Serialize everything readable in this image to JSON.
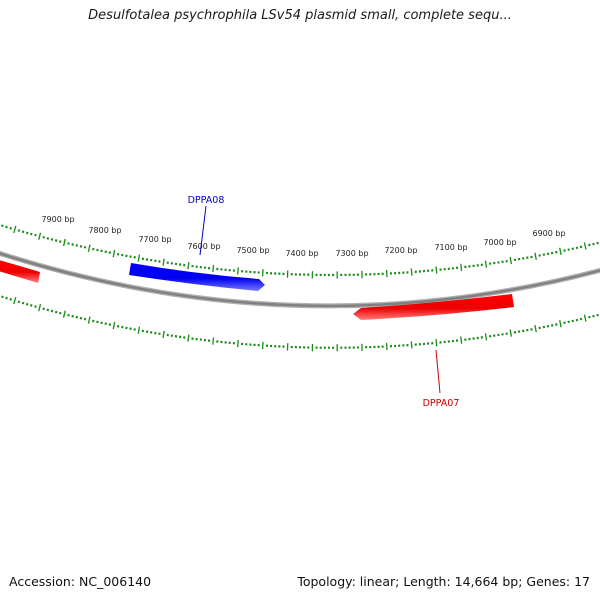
{
  "title": "Desulfotalea psychrophila LSv54 plasmid small, complete sequ...",
  "footer": {
    "accession": "Accession: NC_006140",
    "summary": "Topology: linear; Length: 14,664 bp; Genes: 17"
  },
  "colors": {
    "plus_strand_gene": "#0000ff",
    "minus_strand_gene": "#ff0000",
    "tick": "#1a8a1a",
    "backbone": "#808080"
  },
  "ticks": [
    {
      "label": "7900 bp"
    },
    {
      "label": "7800 bp"
    },
    {
      "label": "7700 bp"
    },
    {
      "label": "7600 bp"
    },
    {
      "label": "7500 bp"
    },
    {
      "label": "7400 bp"
    },
    {
      "label": "7300 bp"
    },
    {
      "label": "7200 bp"
    },
    {
      "label": "7100 bp"
    },
    {
      "label": "7000 bp"
    },
    {
      "label": "6900 bp"
    }
  ],
  "genes": [
    {
      "name": "DPPA08",
      "strand": "+",
      "color": "#0000ff"
    },
    {
      "name": "DPPA07",
      "strand": "-",
      "color": "#ff0000"
    }
  ]
}
